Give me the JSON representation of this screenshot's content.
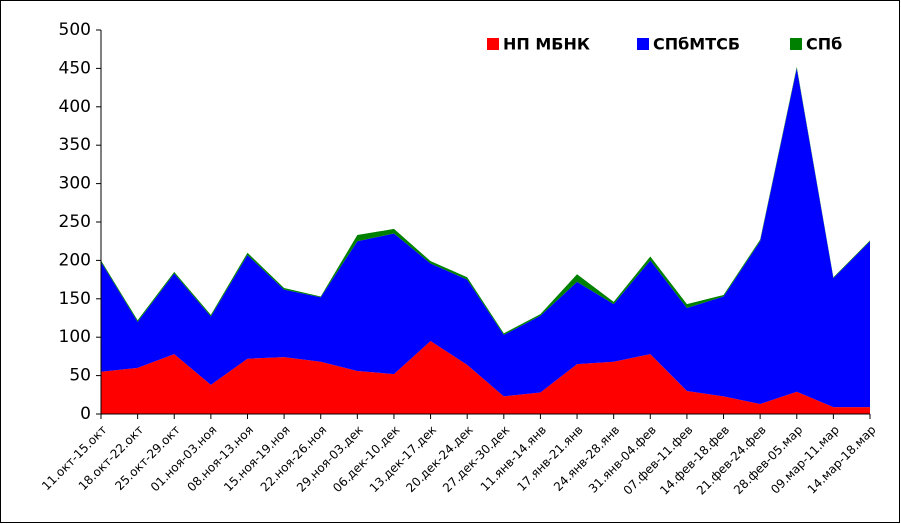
{
  "chart_data": {
    "type": "stacked_area",
    "categories": [
      "11.окт-15.окт",
      "18.окт-22.окт",
      "25.окт-29.окт",
      "01.ноя-03.ноя",
      "08.ноя-13.ноя",
      "15.ноя-19.ноя",
      "22.ноя-26.ноя",
      "29.ноя-03.дек",
      "06.дек-10.дек",
      "13.дек-17.дек",
      "20.дек-24.дек",
      "27.дек-30.дек",
      "11.янв-14.янв",
      "17.янв-21.янв",
      "24.янв-28.янв",
      "31.янв-04.фев",
      "07.фев-11.фев",
      "14.фев-18.фев",
      "21.фев-24.фев",
      "28.фев-05.мар",
      "09.мар-11.мар",
      "14.мар-18.мар"
    ],
    "series": [
      {
        "name": "НП МБНК",
        "color": "#ff0000",
        "values": [
          55,
          60,
          78,
          38,
          72,
          74,
          68,
          56,
          52,
          95,
          64,
          23,
          28,
          65,
          68,
          78,
          30,
          23,
          13,
          29,
          9,
          9
        ]
      },
      {
        "name": "СПбМТСБ",
        "color": "#0000ff",
        "values": [
          143,
          60,
          105,
          89,
          135,
          88,
          84,
          169,
          183,
          101,
          111,
          80,
          100,
          107,
          75,
          122,
          108,
          130,
          212,
          421,
          168,
          216
        ]
      },
      {
        "name": "СПб",
        "color": "#008000",
        "values": [
          2,
          2,
          2,
          2,
          3,
          2,
          1,
          8,
          6,
          3,
          3,
          2,
          2,
          10,
          3,
          5,
          5,
          2,
          2,
          2,
          1,
          1
        ]
      }
    ],
    "ylim": [
      0,
      500
    ],
    "yticks": [
      0,
      50,
      100,
      150,
      200,
      250,
      300,
      350,
      400,
      450,
      500
    ],
    "legend": "top-right"
  }
}
